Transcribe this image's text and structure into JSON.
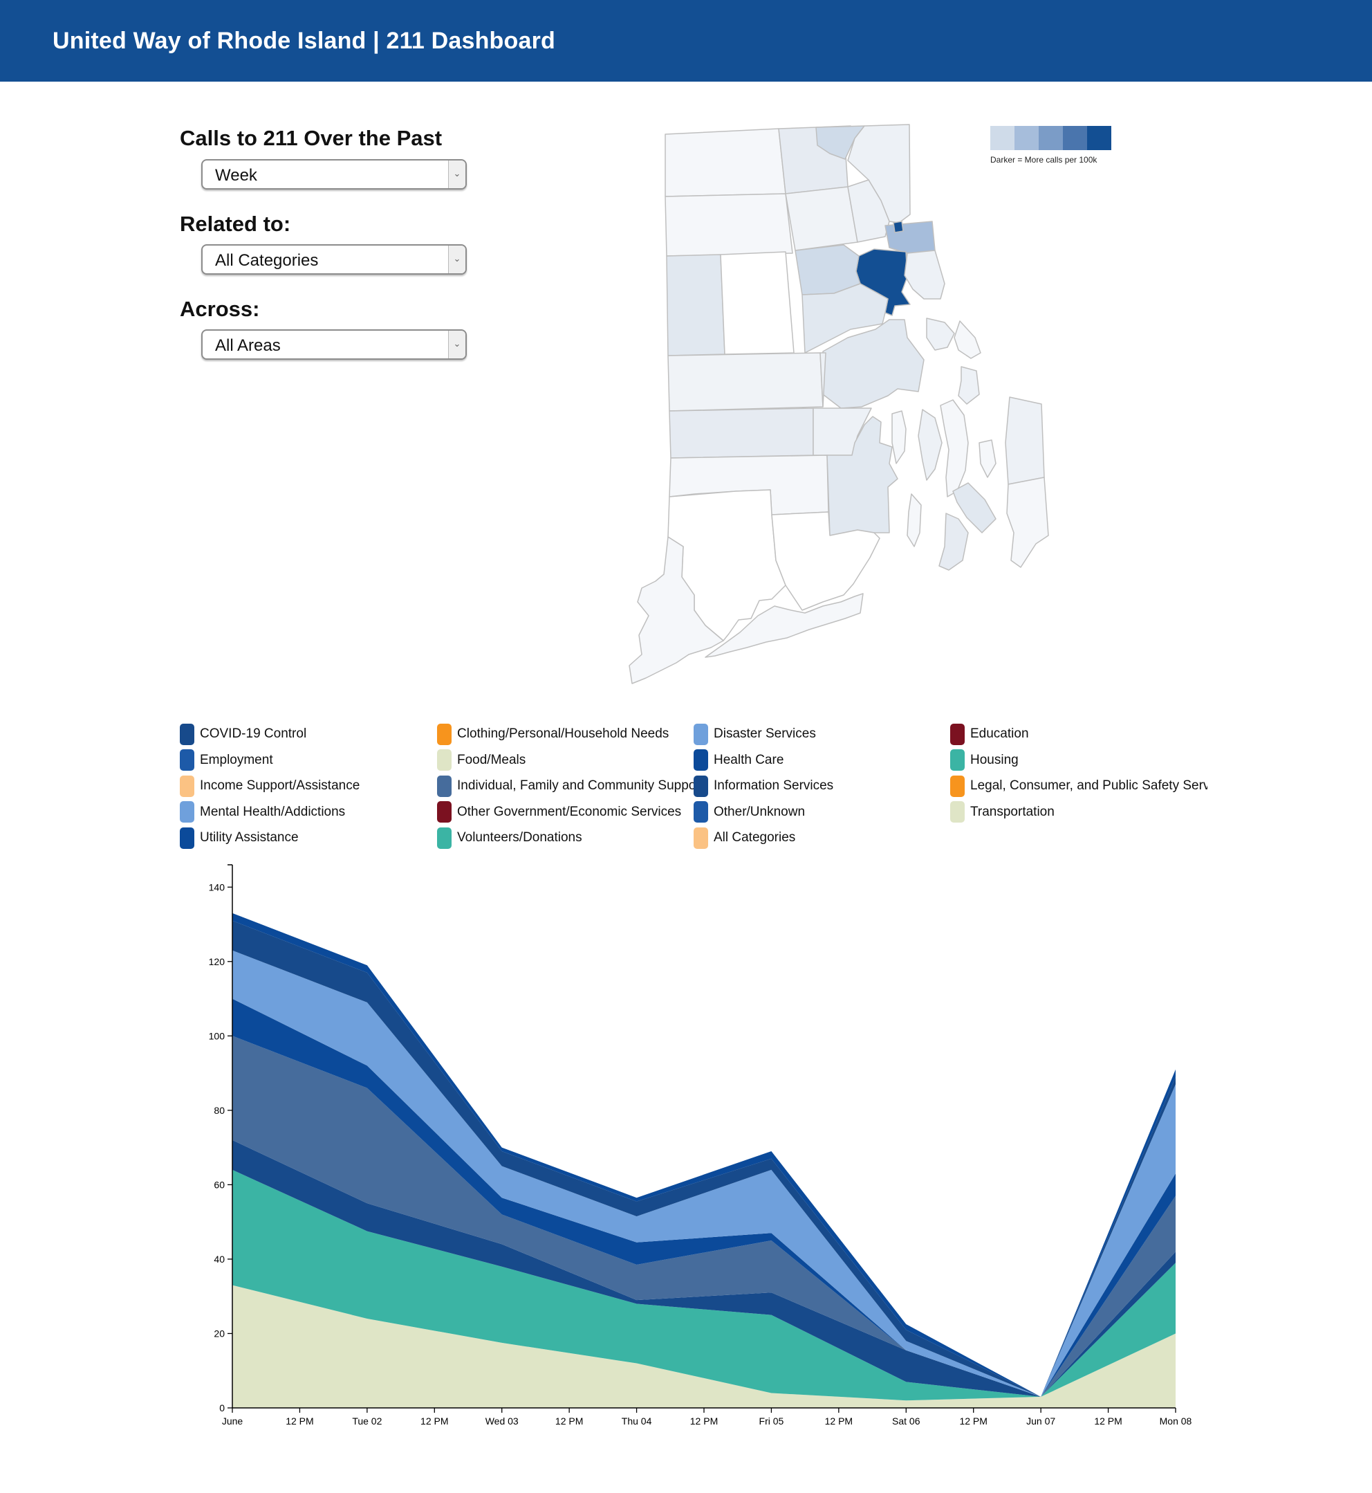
{
  "header": {
    "title": "United Way of Rhode Island | 211 Dashboard"
  },
  "controls": {
    "period_label": "Calls to 211 Over the Past",
    "period_value": "Week",
    "category_label": "Related to:",
    "category_value": "All Categories",
    "area_label": "Across:",
    "area_value": "All Areas"
  },
  "map": {
    "legend_text": "Darker = More calls per 100k",
    "scale_colors": [
      "#cfdbe9",
      "#a6bddb",
      "#7b9cc7",
      "#4a75ad",
      "#134f93"
    ]
  },
  "legend": {
    "items": [
      {
        "label": "COVID-19 Control",
        "color": "#174a8b"
      },
      {
        "label": "Clothing/Personal/Household Needs",
        "color": "#f7941d"
      },
      {
        "label": "Disaster Services",
        "color": "#6fa0dc"
      },
      {
        "label": "Education",
        "color": "#7b1120"
      },
      {
        "label": "Employment",
        "color": "#1d5aa8"
      },
      {
        "label": "Food/Meals",
        "color": "#dfe5c6"
      },
      {
        "label": "Health Care",
        "color": "#0b4a9a"
      },
      {
        "label": "Housing",
        "color": "#3bb4a4"
      },
      {
        "label": "Income Support/Assistance",
        "color": "#fbc283"
      },
      {
        "label": "Individual, Family and Community Support",
        "color": "#466c9c"
      },
      {
        "label": "Information Services",
        "color": "#174a8b"
      },
      {
        "label": "Legal, Consumer, and Public Safety Services",
        "color": "#f7941d"
      },
      {
        "label": "Mental Health/Addictions",
        "color": "#6fa0dc"
      },
      {
        "label": "Other Government/Economic Services",
        "color": "#7b1120"
      },
      {
        "label": "Other/Unknown",
        "color": "#1d5aa8"
      },
      {
        "label": "Transportation",
        "color": "#dfe5c6"
      },
      {
        "label": "Utility Assistance",
        "color": "#0b4a9a"
      },
      {
        "label": "Volunteers/Donations",
        "color": "#3bb4a4"
      },
      {
        "label": "All Categories",
        "color": "#fbc283"
      }
    ]
  },
  "chart_data": {
    "type": "area",
    "stacked": true,
    "x": [
      "Jun 01",
      "Jun 02",
      "Jun 03",
      "Jun 04",
      "Jun 05",
      "Jun 06",
      "Jun 07",
      "Jun 08"
    ],
    "x_tick_labels": [
      "June",
      "12 PM",
      "Tue 02",
      "12 PM",
      "Wed 03",
      "12 PM",
      "Thu 04",
      "12 PM",
      "Fri 05",
      "12 PM",
      "Sat 06",
      "12 PM",
      "Jun 07",
      "12 PM",
      "Mon 08"
    ],
    "y_ticks": [
      0,
      20,
      40,
      60,
      80,
      100,
      120,
      140
    ],
    "ylim": [
      0,
      146
    ],
    "series": [
      {
        "name": "Food/Meals",
        "color": "#dfe5c6",
        "values": [
          33,
          24,
          17.5,
          12,
          4,
          2,
          3,
          20
        ]
      },
      {
        "name": "Housing",
        "color": "#3bb4a4",
        "values": [
          31,
          23.5,
          20.5,
          16,
          21,
          5,
          0,
          19
        ]
      },
      {
        "name": "Employment",
        "color": "#174a8b",
        "values": [
          8,
          7.5,
          6,
          1,
          6,
          8.5,
          0,
          3
        ]
      },
      {
        "name": "Individual, Family and Community Support",
        "color": "#466c9c",
        "values": [
          28,
          31,
          8,
          9.5,
          14,
          0,
          0,
          15
        ]
      },
      {
        "name": "Health Care",
        "color": "#0b4a9a",
        "values": [
          10,
          6,
          4.5,
          6,
          2,
          0,
          0,
          6
        ]
      },
      {
        "name": "Mental Health/Addictions",
        "color": "#6fa0dc",
        "values": [
          13,
          17,
          8.5,
          7,
          17,
          2.5,
          0,
          24
        ]
      },
      {
        "name": "Information Services",
        "color": "#174a8b",
        "values": [
          8,
          8,
          4,
          4,
          3,
          3,
          0,
          2
        ]
      },
      {
        "name": "Utility Assistance",
        "color": "#0b4a9a",
        "values": [
          2,
          2,
          1,
          1,
          2,
          1.5,
          0,
          2
        ]
      }
    ]
  }
}
